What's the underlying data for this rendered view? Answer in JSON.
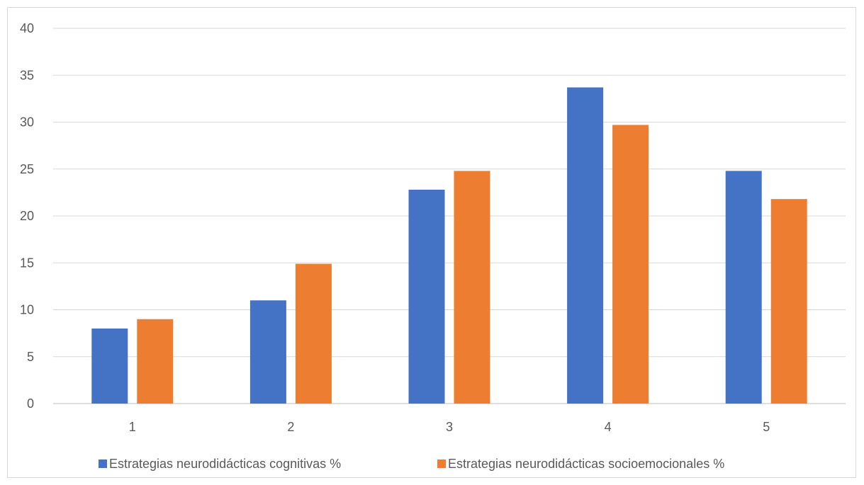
{
  "chart_data": {
    "type": "bar",
    "categories": [
      "1",
      "2",
      "3",
      "4",
      "5"
    ],
    "series": [
      {
        "name": "Estrategias neurodidácticas cognitivas %",
        "color": "#4472C4",
        "values": [
          8,
          11,
          22.8,
          33.7,
          24.8
        ]
      },
      {
        "name": "Estrategias neurodidácticas socioemocionales %",
        "color": "#ED7D31",
        "values": [
          9,
          14.9,
          24.8,
          29.7,
          21.8
        ]
      }
    ],
    "ylim": [
      0,
      40
    ],
    "yticks": [
      "0",
      "5",
      "10",
      "15",
      "20",
      "25",
      "30",
      "35",
      "40"
    ],
    "grid": true,
    "legend_position": "bottom"
  }
}
